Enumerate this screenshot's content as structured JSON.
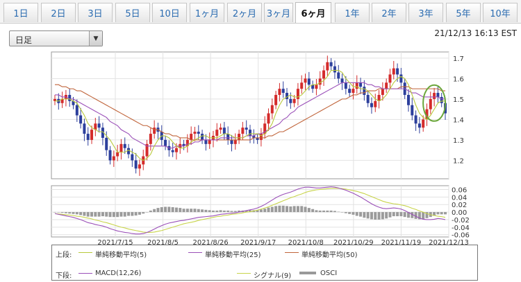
{
  "tabs": [
    {
      "label": "1日",
      "active": false
    },
    {
      "label": "2日",
      "active": false
    },
    {
      "label": "3日",
      "active": false
    },
    {
      "label": "5日",
      "active": false
    },
    {
      "label": "10日",
      "active": false
    },
    {
      "label": "1ヶ月",
      "active": false
    },
    {
      "label": "2ヶ月",
      "active": false
    },
    {
      "label": "3ヶ月",
      "active": false
    },
    {
      "label": "6ヶ月",
      "active": true
    },
    {
      "label": "1年",
      "active": false
    },
    {
      "label": "2年",
      "active": false
    },
    {
      "label": "3年",
      "active": false
    },
    {
      "label": "5年",
      "active": false
    },
    {
      "label": "10年",
      "active": false
    }
  ],
  "period_select": {
    "value": "日足"
  },
  "timestamp": "21/12/13 16:13 EST",
  "legend": {
    "upper_label": "上段:",
    "lower_label": "下段:",
    "upper": [
      {
        "label": "単純移動平均(5)",
        "color": "#b8c93a"
      },
      {
        "label": "単純移動平均(25)",
        "color": "#9a4fb8"
      },
      {
        "label": "単純移動平均(50)",
        "color": "#c0643a"
      }
    ],
    "lower": [
      {
        "label": "MACD(12,26)",
        "color": "#9a4fb8"
      },
      {
        "label": "シグナル(9)",
        "color": "#c8d44a"
      },
      {
        "label": "OSCI",
        "color": "#999999"
      }
    ]
  },
  "colors": {
    "up": "#d42b2b",
    "down": "#2c3f9c",
    "highlight": "#6aa63a"
  },
  "chart_data": [
    {
      "type": "candlestick",
      "yticks": [
        1.2,
        1.3,
        1.4,
        1.5,
        1.6,
        1.7
      ],
      "ylim": [
        1.11,
        1.73
      ],
      "xticks": [
        "2021/7/15",
        "2021/8/5",
        "2021/8/26",
        "2021/9/17",
        "2021/10/8",
        "2021/10/29",
        "2021/11/19",
        "2021/12/13"
      ],
      "close": [
        1.5,
        1.48,
        1.5,
        1.52,
        1.49,
        1.47,
        1.42,
        1.38,
        1.33,
        1.3,
        1.35,
        1.38,
        1.36,
        1.31,
        1.25,
        1.2,
        1.22,
        1.24,
        1.28,
        1.26,
        1.23,
        1.2,
        1.16,
        1.18,
        1.22,
        1.28,
        1.33,
        1.36,
        1.34,
        1.3,
        1.27,
        1.25,
        1.24,
        1.26,
        1.28,
        1.27,
        1.3,
        1.33,
        1.34,
        1.33,
        1.3,
        1.28,
        1.3,
        1.32,
        1.35,
        1.36,
        1.33,
        1.3,
        1.28,
        1.3,
        1.33,
        1.36,
        1.35,
        1.32,
        1.31,
        1.3,
        1.33,
        1.38,
        1.43,
        1.47,
        1.52,
        1.55,
        1.53,
        1.5,
        1.48,
        1.5,
        1.55,
        1.58,
        1.6,
        1.57,
        1.55,
        1.57,
        1.6,
        1.64,
        1.68,
        1.66,
        1.63,
        1.6,
        1.58,
        1.55,
        1.53,
        1.55,
        1.58,
        1.56,
        1.52,
        1.48,
        1.46,
        1.49,
        1.52,
        1.55,
        1.58,
        1.62,
        1.65,
        1.62,
        1.58,
        1.52,
        1.47,
        1.42,
        1.38,
        1.36,
        1.4,
        1.45,
        1.5,
        1.53,
        1.51,
        1.48,
        1.43
      ],
      "ma5": [
        1.49,
        1.49,
        1.5,
        1.5,
        1.5,
        1.49,
        1.48,
        1.45,
        1.42,
        1.38,
        1.36,
        1.35,
        1.34,
        1.34,
        1.32,
        1.3,
        1.27,
        1.24,
        1.24,
        1.24,
        1.25,
        1.24,
        1.23,
        1.21,
        1.2,
        1.21,
        1.23,
        1.27,
        1.3,
        1.32,
        1.32,
        1.31,
        1.29,
        1.27,
        1.26,
        1.26,
        1.27,
        1.29,
        1.3,
        1.31,
        1.32,
        1.32,
        1.31,
        1.31,
        1.31,
        1.32,
        1.33,
        1.33,
        1.32,
        1.31,
        1.31,
        1.31,
        1.32,
        1.33,
        1.33,
        1.33,
        1.32,
        1.33,
        1.35,
        1.38,
        1.43,
        1.47,
        1.5,
        1.51,
        1.52,
        1.51,
        1.51,
        1.52,
        1.54,
        1.56,
        1.57,
        1.57,
        1.58,
        1.59,
        1.61,
        1.64,
        1.64,
        1.64,
        1.63,
        1.6,
        1.58,
        1.56,
        1.56,
        1.55,
        1.55,
        1.54,
        1.52,
        1.5,
        1.49,
        1.5,
        1.52,
        1.55,
        1.58,
        1.6,
        1.61,
        1.6,
        1.57,
        1.52,
        1.47,
        1.43,
        1.41,
        1.4,
        1.42,
        1.45,
        1.48,
        1.49,
        1.49
      ],
      "ma25": [
        1.52,
        1.52,
        1.51,
        1.51,
        1.5,
        1.5,
        1.49,
        1.48,
        1.47,
        1.46,
        1.45,
        1.44,
        1.43,
        1.42,
        1.41,
        1.39,
        1.38,
        1.37,
        1.35,
        1.34,
        1.33,
        1.31,
        1.3,
        1.29,
        1.28,
        1.27,
        1.27,
        1.27,
        1.27,
        1.27,
        1.27,
        1.26,
        1.26,
        1.27,
        1.27,
        1.27,
        1.28,
        1.28,
        1.29,
        1.29,
        1.3,
        1.3,
        1.3,
        1.3,
        1.3,
        1.31,
        1.31,
        1.31,
        1.31,
        1.31,
        1.31,
        1.31,
        1.32,
        1.32,
        1.32,
        1.33,
        1.33,
        1.34,
        1.35,
        1.36,
        1.37,
        1.38,
        1.4,
        1.41,
        1.43,
        1.44,
        1.46,
        1.47,
        1.48,
        1.49,
        1.5,
        1.51,
        1.52,
        1.53,
        1.54,
        1.55,
        1.56,
        1.57,
        1.58,
        1.58,
        1.58,
        1.58,
        1.58,
        1.58,
        1.58,
        1.57,
        1.57,
        1.56,
        1.56,
        1.55,
        1.55,
        1.55,
        1.55,
        1.55,
        1.55,
        1.55,
        1.54,
        1.53,
        1.53,
        1.52,
        1.51,
        1.51,
        1.51,
        1.51,
        1.51,
        1.5,
        1.5
      ],
      "ma50": [
        1.57,
        1.57,
        1.56,
        1.56,
        1.55,
        1.55,
        1.54,
        1.54,
        1.53,
        1.52,
        1.51,
        1.5,
        1.49,
        1.48,
        1.47,
        1.46,
        1.45,
        1.44,
        1.43,
        1.42,
        1.41,
        1.4,
        1.39,
        1.38,
        1.37,
        1.37,
        1.36,
        1.35,
        1.35,
        1.34,
        1.33,
        1.33,
        1.32,
        1.32,
        1.31,
        1.31,
        1.31,
        1.3,
        1.3,
        1.3,
        1.3,
        1.3,
        1.3,
        1.3,
        1.3,
        1.3,
        1.3,
        1.3,
        1.3,
        1.3,
        1.3,
        1.3,
        1.3,
        1.3,
        1.31,
        1.31,
        1.31,
        1.31,
        1.32,
        1.32,
        1.33,
        1.34,
        1.34,
        1.35,
        1.36,
        1.37,
        1.38,
        1.39,
        1.4,
        1.41,
        1.42,
        1.43,
        1.44,
        1.45,
        1.46,
        1.47,
        1.48,
        1.49,
        1.5,
        1.5,
        1.51,
        1.52,
        1.52,
        1.53,
        1.53,
        1.54,
        1.54,
        1.54,
        1.55,
        1.55,
        1.55,
        1.55,
        1.55,
        1.55,
        1.56,
        1.56,
        1.56,
        1.55,
        1.55,
        1.55,
        1.55,
        1.55,
        1.55,
        1.55,
        1.55,
        1.54,
        1.54
      ]
    },
    {
      "type": "macd",
      "yticks": [
        0.06,
        0.04,
        0.02,
        0.0,
        -0.02,
        -0.04,
        -0.06
      ],
      "ylim": [
        -0.066,
        0.07
      ],
      "xticks": [
        "2021/7/15",
        "2021/8/5",
        "2021/8/26",
        "2021/9/17",
        "2021/10/8",
        "2021/10/29",
        "2021/11/19",
        "2021/12/13"
      ],
      "macd": [
        -0.004,
        -0.006,
        -0.008,
        -0.01,
        -0.012,
        -0.014,
        -0.017,
        -0.02,
        -0.024,
        -0.028,
        -0.03,
        -0.033,
        -0.035,
        -0.037,
        -0.04,
        -0.044,
        -0.047,
        -0.05,
        -0.052,
        -0.054,
        -0.055,
        -0.057,
        -0.058,
        -0.058,
        -0.057,
        -0.054,
        -0.05,
        -0.045,
        -0.04,
        -0.036,
        -0.032,
        -0.029,
        -0.027,
        -0.025,
        -0.023,
        -0.022,
        -0.02,
        -0.018,
        -0.016,
        -0.014,
        -0.013,
        -0.012,
        -0.011,
        -0.01,
        -0.008,
        -0.006,
        -0.005,
        -0.004,
        -0.003,
        -0.002,
        0.0,
        0.002,
        0.004,
        0.006,
        0.008,
        0.011,
        0.015,
        0.02,
        0.026,
        0.032,
        0.038,
        0.043,
        0.047,
        0.05,
        0.053,
        0.057,
        0.061,
        0.064,
        0.066,
        0.066,
        0.065,
        0.064,
        0.064,
        0.065,
        0.066,
        0.067,
        0.066,
        0.064,
        0.061,
        0.058,
        0.054,
        0.05,
        0.045,
        0.04,
        0.034,
        0.028,
        0.022,
        0.017,
        0.013,
        0.01,
        0.009,
        0.01,
        0.011,
        0.01,
        0.008,
        0.004,
        -0.001,
        -0.006,
        -0.011,
        -0.016,
        -0.019,
        -0.02,
        -0.02,
        -0.019,
        -0.017,
        -0.018,
        -0.02
      ],
      "signal": [
        -0.004,
        -0.005,
        -0.006,
        -0.007,
        -0.008,
        -0.009,
        -0.011,
        -0.012,
        -0.014,
        -0.016,
        -0.018,
        -0.021,
        -0.023,
        -0.026,
        -0.028,
        -0.031,
        -0.034,
        -0.037,
        -0.04,
        -0.042,
        -0.045,
        -0.047,
        -0.049,
        -0.051,
        -0.053,
        -0.054,
        -0.054,
        -0.053,
        -0.051,
        -0.049,
        -0.046,
        -0.043,
        -0.04,
        -0.037,
        -0.034,
        -0.031,
        -0.029,
        -0.027,
        -0.025,
        -0.022,
        -0.02,
        -0.018,
        -0.016,
        -0.014,
        -0.012,
        -0.011,
        -0.009,
        -0.008,
        -0.006,
        -0.005,
        -0.004,
        -0.002,
        0.0,
        0.001,
        0.003,
        0.005,
        0.008,
        0.011,
        0.014,
        0.018,
        0.022,
        0.026,
        0.03,
        0.034,
        0.038,
        0.041,
        0.045,
        0.048,
        0.052,
        0.055,
        0.057,
        0.059,
        0.06,
        0.061,
        0.062,
        0.063,
        0.063,
        0.063,
        0.062,
        0.061,
        0.059,
        0.057,
        0.055,
        0.052,
        0.049,
        0.045,
        0.041,
        0.037,
        0.033,
        0.029,
        0.026,
        0.024,
        0.022,
        0.021,
        0.019,
        0.017,
        0.014,
        0.01,
        0.007,
        0.003,
        0.0,
        -0.004,
        -0.007,
        -0.009,
        -0.011,
        -0.012,
        -0.014
      ],
      "osci": [
        0.0,
        -0.001,
        -0.002,
        -0.003,
        -0.004,
        -0.005,
        -0.006,
        -0.008,
        -0.01,
        -0.012,
        -0.012,
        -0.012,
        -0.012,
        -0.011,
        -0.012,
        -0.013,
        -0.013,
        -0.013,
        -0.012,
        -0.012,
        -0.01,
        -0.01,
        -0.009,
        -0.007,
        -0.004,
        0.0,
        0.004,
        0.008,
        0.011,
        0.013,
        0.014,
        0.014,
        0.013,
        0.012,
        0.011,
        0.009,
        0.009,
        0.009,
        0.009,
        0.008,
        0.007,
        0.006,
        0.005,
        0.004,
        0.004,
        0.005,
        0.004,
        0.004,
        0.003,
        0.003,
        0.004,
        0.004,
        0.004,
        0.005,
        0.005,
        0.006,
        0.007,
        0.009,
        0.012,
        0.014,
        0.016,
        0.017,
        0.017,
        0.016,
        0.015,
        0.016,
        0.016,
        0.016,
        0.014,
        0.011,
        0.008,
        0.005,
        0.004,
        0.004,
        0.004,
        0.004,
        0.003,
        0.001,
        -0.001,
        -0.003,
        -0.005,
        -0.007,
        -0.01,
        -0.012,
        -0.015,
        -0.017,
        -0.019,
        -0.02,
        -0.02,
        -0.019,
        -0.017,
        -0.014,
        -0.011,
        -0.011,
        -0.011,
        -0.013,
        -0.015,
        -0.016,
        -0.018,
        -0.019,
        -0.019,
        -0.016,
        -0.013,
        -0.01,
        -0.006,
        -0.006,
        -0.006
      ]
    }
  ]
}
